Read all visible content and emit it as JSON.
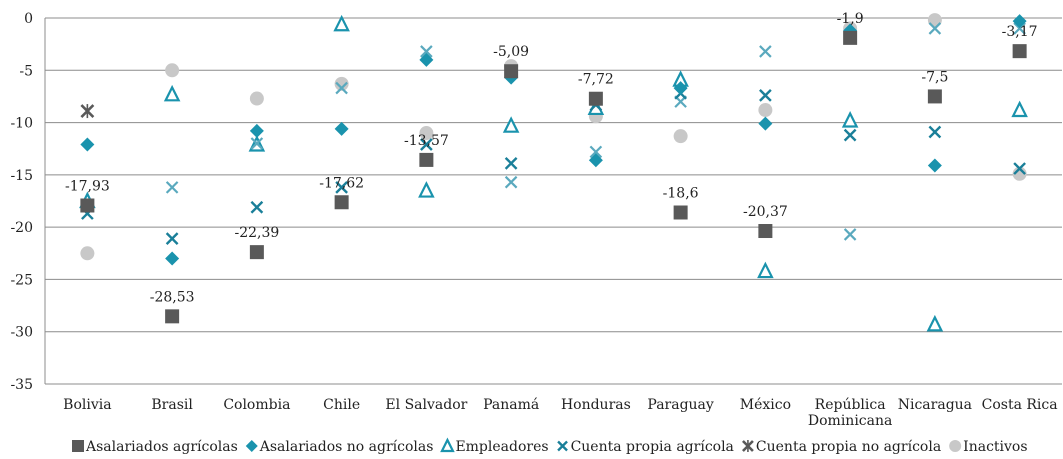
{
  "chart_data": {
    "type": "scatter",
    "categories": [
      "Bolivia",
      "Brasil",
      "Colombia",
      "Chile",
      "El Salvador",
      "Panamá",
      "Honduras",
      "Paraguay",
      "México",
      "República Dominicana",
      "Nicaragua",
      "Costa Rica"
    ],
    "ylim": [
      -35,
      0
    ],
    "yticks": [
      0,
      -5,
      -10,
      -15,
      -20,
      -25,
      -30,
      -35
    ],
    "grid": true,
    "legend_position": "bottom",
    "series": [
      {
        "name": "Asalariados agrícolas",
        "marker": "square",
        "color": "#595959",
        "values": [
          -17.93,
          -28.53,
          -22.39,
          -17.62,
          -13.57,
          -5.09,
          -7.72,
          -18.6,
          -20.37,
          -1.9,
          -7.5,
          -3.17
        ],
        "labels": [
          "-17,93",
          "-28,53",
          "-22,39",
          "-17,62",
          "-13,57",
          "-5,09",
          "-7,72",
          "-18,6",
          "-20,37",
          "-1,9",
          "-7,5",
          "-3,17"
        ]
      },
      {
        "name": "Asalariados no agrícolas",
        "marker": "diamond",
        "color": "#1a93ad",
        "values": [
          -12.1,
          -23.0,
          -10.8,
          -10.6,
          -4.0,
          -5.7,
          -13.6,
          -6.7,
          -10.1,
          -1.2,
          -14.1,
          -0.3
        ]
      },
      {
        "name": "Empleadores",
        "marker": "triangle",
        "color": "#1a93ad",
        "values": [
          -17.5,
          -7.3,
          -12.1,
          -0.6,
          -16.5,
          -10.3,
          -8.6,
          -5.9,
          -24.2,
          -9.8,
          -29.3,
          -8.8
        ]
      },
      {
        "name": "Cuenta propia agrícola",
        "marker": "x",
        "color": "#1a7f99",
        "values": [
          -18.7,
          -21.1,
          -18.1,
          -16.2,
          -12.1,
          -13.9,
          -8.3,
          -7.2,
          -7.4,
          -11.2,
          -10.9,
          -14.4
        ]
      },
      {
        "name": "Cuenta propia no agrícola",
        "marker": "star",
        "color": "#595959",
        "values": [
          -8.9,
          null,
          null,
          null,
          null,
          null,
          null,
          null,
          null,
          null,
          null,
          null
        ]
      },
      {
        "name": "Cuenta propia agrícola",
        "legend": false,
        "marker": "x-light",
        "color": "#5aa9be",
        "values": [
          null,
          -16.2,
          -12.0,
          -6.7,
          -3.2,
          -15.7,
          -12.8,
          -8.0,
          -3.2,
          -20.7,
          -1.0,
          -1.0
        ]
      },
      {
        "name": "Inactivos",
        "marker": "circle",
        "color": "#c8c8c8",
        "values": [
          -22.5,
          -5.0,
          -7.7,
          -6.3,
          -11.0,
          -4.6,
          -9.4,
          -11.3,
          -8.8,
          -1.0,
          -0.2,
          -14.9
        ]
      }
    ]
  }
}
